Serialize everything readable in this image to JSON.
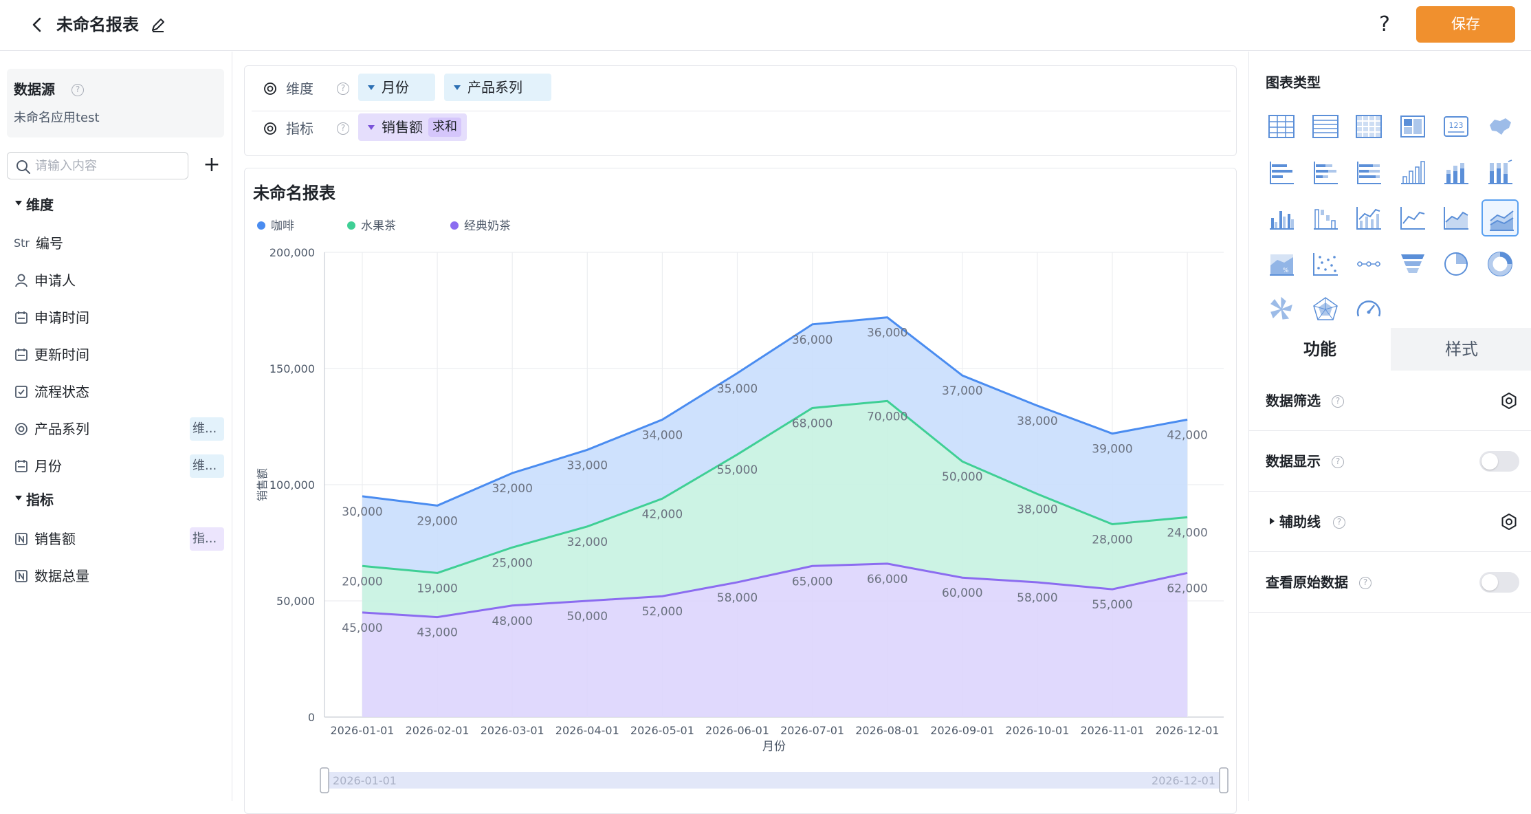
{
  "header": {
    "title": "未命名报表",
    "help": "?",
    "save_label": "保存"
  },
  "left_panel": {
    "datasource_label": "数据源",
    "datasource_name": "未命名应用test",
    "search_placeholder": "请输入内容",
    "add": "+",
    "dimension_section": "维度",
    "metric_section": "指标",
    "dimensions": [
      {
        "icon": "Str",
        "label": "编号",
        "tag": ""
      },
      {
        "icon": "user-icon",
        "label": "申请人",
        "tag": ""
      },
      {
        "icon": "calendar-icon",
        "label": "申请时间",
        "tag": ""
      },
      {
        "icon": "calendar-icon",
        "label": "更新时间",
        "tag": ""
      },
      {
        "icon": "checkbox-icon",
        "label": "流程状态",
        "tag": ""
      },
      {
        "icon": "radio-icon",
        "label": "产品系列",
        "tag": "维..."
      },
      {
        "icon": "calendar-icon",
        "label": "月份",
        "tag": "维..."
      }
    ],
    "metrics": [
      {
        "icon": "number-icon",
        "label": "销售额",
        "tag": "指..."
      },
      {
        "icon": "number-icon",
        "label": "数据总量",
        "tag": ""
      }
    ]
  },
  "config": {
    "dimension_label": "维度",
    "metric_label": "指标",
    "dimension_pills": [
      "月份",
      "产品系列"
    ],
    "metric_pill": "销售额",
    "metric_agg": "求和"
  },
  "chart": {
    "title": "未命名报表",
    "range_start": "2026-01-01",
    "range_end": "2026-12-01"
  },
  "chart_data": {
    "type": "area",
    "stacked": true,
    "categories": [
      "2026-01-01",
      "2026-02-01",
      "2026-03-01",
      "2026-04-01",
      "2026-05-01",
      "2026-06-01",
      "2026-07-01",
      "2026-08-01",
      "2026-09-01",
      "2026-10-01",
      "2026-11-01",
      "2026-12-01"
    ],
    "series": [
      {
        "name": "经典奶茶",
        "color": "#8b6cf0",
        "values": [
          45000,
          43000,
          48000,
          50000,
          52000,
          58000,
          65000,
          66000,
          60000,
          58000,
          55000,
          62000
        ]
      },
      {
        "name": "水果茶",
        "color": "#3fcf95",
        "values": [
          20000,
          19000,
          25000,
          32000,
          42000,
          55000,
          68000,
          70000,
          50000,
          38000,
          28000,
          24000
        ]
      },
      {
        "name": "咖啡",
        "color": "#4a8cf0",
        "values": [
          30000,
          29000,
          32000,
          33000,
          34000,
          35000,
          36000,
          36000,
          37000,
          38000,
          39000,
          42000
        ]
      }
    ],
    "legend_order": [
      "咖啡",
      "水果茶",
      "经典奶茶"
    ],
    "xlabel": "月份",
    "ylabel": "销售额",
    "yticks": [
      "0",
      "50,000",
      "100,000",
      "150,000",
      "200,000"
    ],
    "ylim": [
      0,
      200000
    ],
    "grid": true,
    "legend_position": "top-left"
  },
  "right_panel": {
    "chart_type_title": "图表类型",
    "tab_function": "功能",
    "tab_style": "样式",
    "options": [
      {
        "label": "数据筛选",
        "control": "gear"
      },
      {
        "label": "数据显示",
        "control": "toggle",
        "on": false
      },
      {
        "label": "辅助线",
        "control": "gear",
        "collapsible": true
      },
      {
        "label": "查看原始数据",
        "control": "toggle",
        "on": false
      }
    ],
    "chart_types": [
      "table-icon",
      "detail-table-icon",
      "pivot-table-icon",
      "card-icon",
      "kpi-icon",
      "map-icon",
      "bar-horizontal-icon",
      "stacked-bar-horizontal-icon",
      "percent-bar-horizontal-icon",
      "column-icon",
      "stacked-column-icon",
      "percent-column-icon",
      "grouped-column-icon",
      "waterfall-icon",
      "combo-icon",
      "line-icon",
      "area-icon",
      "stacked-area-icon",
      "percent-area-icon",
      "scatter-icon",
      "dot-line-icon",
      "funnel-icon",
      "pie-icon",
      "donut-icon",
      "rose-icon",
      "radar-icon",
      "gauge-icon"
    ],
    "selected_chart_type": "stacked-area-icon"
  }
}
